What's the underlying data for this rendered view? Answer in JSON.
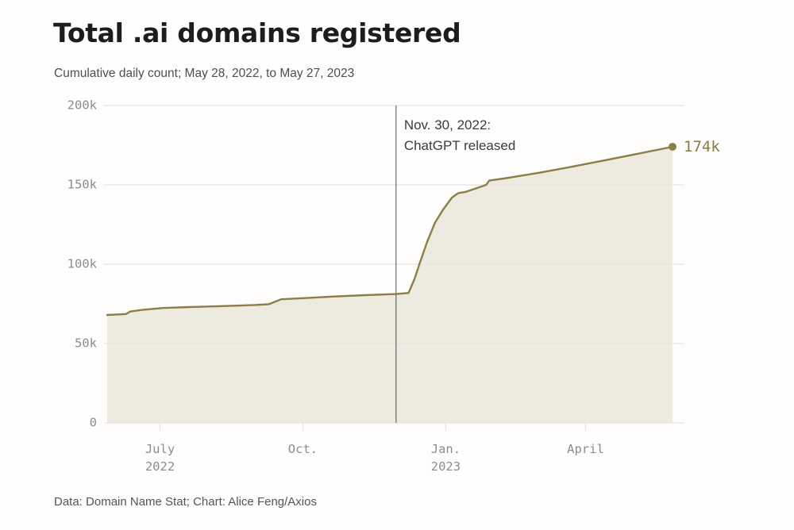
{
  "header": {
    "title": "Total .ai domains registered",
    "subtitle": "Cumulative daily count; May 28, 2022, to May 27, 2023"
  },
  "footer": {
    "credit": "Data: Domain Name Stat; Chart: Alice Feng/Axios"
  },
  "chart_data": {
    "type": "area",
    "title": "Total .ai domains registered",
    "subtitle": "Cumulative daily count; May 28, 2022, to May 27, 2023",
    "x_domain": [
      "2022-05-28",
      "2023-05-27"
    ],
    "ylim": [
      0,
      200000
    ],
    "grid": true,
    "legend": "none",
    "y_ticks": [
      {
        "value": 0,
        "label": "0"
      },
      {
        "value": 50000,
        "label": "50k"
      },
      {
        "value": 100000,
        "label": "100k"
      },
      {
        "value": 150000,
        "label": "150k"
      },
      {
        "value": 200000,
        "label": "200k"
      }
    ],
    "x_ticks": [
      {
        "date": "2022-07-01",
        "label": "July\n2022"
      },
      {
        "date": "2022-10-01",
        "label": "Oct."
      },
      {
        "date": "2023-01-01",
        "label": "Jan.\n2023"
      },
      {
        "date": "2023-04-01",
        "label": "April"
      }
    ],
    "series": [
      {
        "name": "Total .ai domains registered (cumulative)",
        "points": [
          [
            "2022-05-28",
            68000
          ],
          [
            "2022-06-09",
            68600
          ],
          [
            "2022-06-12",
            70200
          ],
          [
            "2022-06-20",
            71300
          ],
          [
            "2022-07-03",
            72400
          ],
          [
            "2022-07-20",
            73000
          ],
          [
            "2022-08-10",
            73600
          ],
          [
            "2022-08-31",
            74300
          ],
          [
            "2022-09-09",
            74800
          ],
          [
            "2022-09-13",
            76300
          ],
          [
            "2022-09-17",
            77900
          ],
          [
            "2022-10-01",
            78600
          ],
          [
            "2022-10-20",
            79600
          ],
          [
            "2022-11-10",
            80500
          ],
          [
            "2022-11-30",
            81200
          ],
          [
            "2022-12-08",
            81900
          ],
          [
            "2022-12-12",
            91000
          ],
          [
            "2022-12-15",
            100000
          ],
          [
            "2022-12-20",
            114000
          ],
          [
            "2022-12-25",
            126000
          ],
          [
            "2022-12-30",
            134000
          ],
          [
            "2023-01-05",
            142000
          ],
          [
            "2023-01-09",
            144800
          ],
          [
            "2023-01-14",
            145600
          ],
          [
            "2023-01-22",
            148300
          ],
          [
            "2023-01-27",
            150000
          ],
          [
            "2023-01-29",
            152700
          ],
          [
            "2023-02-10",
            154400
          ],
          [
            "2023-03-03",
            157800
          ],
          [
            "2023-03-23",
            161400
          ],
          [
            "2023-04-13",
            165400
          ],
          [
            "2023-05-03",
            169300
          ],
          [
            "2023-05-27",
            174000
          ]
        ]
      }
    ],
    "annotation": {
      "date": "2022-11-30",
      "line1": "Nov. 30, 2022:",
      "line2": "ChatGPT released"
    },
    "end_label": "174k",
    "colors": {
      "line": "#8b7e46",
      "fill": "#edeae0",
      "annotation_line": "#4e4e4e",
      "grid": "#e4e4e2",
      "tick_text": "#8d8d8d",
      "annotation_text": "#3c3c3c",
      "end_label": "#897c44",
      "title_text": "#1d1d1d",
      "background": "#fefdfb"
    }
  }
}
